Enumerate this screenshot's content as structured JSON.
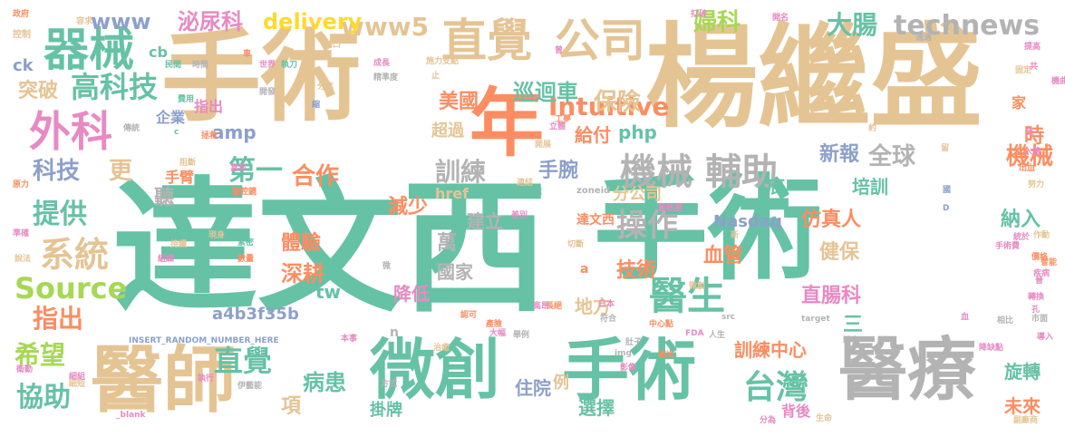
{
  "colors": {
    "green": "#66c2a5",
    "tan": "#e5c494",
    "orange": "#fc8d62",
    "blue": "#8da0cb",
    "pink": "#e78ac3",
    "lime": "#a6d854",
    "yellow": "#ffd92f",
    "gray": "#b3b3b3"
  },
  "words": [
    {
      "text": "達文西"
    },
    {
      "text": "手術"
    },
    {
      "text": "楊繼盛"
    },
    {
      "text": "手術"
    },
    {
      "text": "醫師"
    },
    {
      "text": "微創"
    },
    {
      "text": "手術"
    },
    {
      "text": "醫療"
    },
    {
      "text": "年"
    },
    {
      "text": "直覺"
    },
    {
      "text": "公司"
    },
    {
      "text": "器械"
    },
    {
      "text": "外科"
    },
    {
      "text": "高科技"
    },
    {
      "text": "機械"
    },
    {
      "text": "輔助"
    },
    {
      "text": "醫生"
    },
    {
      "text": "台灣"
    },
    {
      "text": "系統"
    },
    {
      "text": "Source"
    },
    {
      "text": "Intuitive"
    },
    {
      "text": "technews"
    },
    {
      "text": "www5"
    },
    {
      "text": "泌尿科"
    },
    {
      "text": "delivery"
    },
    {
      "text": "www"
    },
    {
      "text": "大腸"
    },
    {
      "text": "婦科"
    },
    {
      "text": "突破"
    },
    {
      "text": "保險"
    },
    {
      "text": "美國"
    },
    {
      "text": "巡迴車"
    },
    {
      "text": "訓練"
    },
    {
      "text": "手腕"
    },
    {
      "text": "科技"
    },
    {
      "text": "更"
    },
    {
      "text": "第一"
    },
    {
      "text": "合作"
    },
    {
      "text": "提供"
    },
    {
      "text": "操作"
    },
    {
      "text": "技術"
    },
    {
      "text": "直覺"
    },
    {
      "text": "希望"
    },
    {
      "text": "協助"
    },
    {
      "text": "指出"
    },
    {
      "text": "體驗"
    },
    {
      "text": "深耕"
    },
    {
      "text": "仿真人"
    },
    {
      "text": "血管"
    },
    {
      "text": "直腸科"
    },
    {
      "text": "訓練中心"
    },
    {
      "text": "病患"
    },
    {
      "text": "住院"
    },
    {
      "text": "選擇"
    },
    {
      "text": "未來"
    },
    {
      "text": "旋轉"
    },
    {
      "text": "全球"
    },
    {
      "text": "新報"
    },
    {
      "text": "機械"
    },
    {
      "text": "時"
    },
    {
      "text": "培訓"
    },
    {
      "text": "納入"
    },
    {
      "text": "健保"
    },
    {
      "text": "給付"
    },
    {
      "text": "超過"
    },
    {
      "text": "減少"
    },
    {
      "text": "分公司"
    },
    {
      "text": "建立"
    },
    {
      "text": "國家"
    },
    {
      "text": "降低"
    },
    {
      "text": "地方"
    },
    {
      "text": "Nasdaq"
    },
    {
      "text": "a4b3f35b"
    },
    {
      "text": "amp"
    },
    {
      "text": "php"
    },
    {
      "text": "tw"
    },
    {
      "text": "企業"
    },
    {
      "text": "聽"
    },
    {
      "text": "手臂"
    },
    {
      "text": "萬"
    },
    {
      "text": "三"
    },
    {
      "text": "項"
    },
    {
      "text": "掛牌"
    },
    {
      "text": "達文西"
    },
    {
      "text": "ck"
    },
    {
      "text": "cb"
    },
    {
      "text": "底"
    },
    {
      "text": "家"
    },
    {
      "text": "INSERT_RANDOM_NUMBER_HERE"
    },
    {
      "text": "href"
    },
    {
      "text": "zoneid"
    },
    {
      "text": "例"
    },
    {
      "text": "背後"
    },
    {
      "text": "a"
    },
    {
      "text": "n"
    },
    {
      "text": "政府"
    },
    {
      "text": "控制"
    },
    {
      "text": "精準度"
    },
    {
      "text": "施力支點"
    },
    {
      "text": "成長"
    },
    {
      "text": "民間"
    },
    {
      "text": "時間"
    },
    {
      "text": "世界"
    },
    {
      "text": "執刀"
    },
    {
      "text": "分享"
    },
    {
      "text": "開發"
    },
    {
      "text": "費用"
    },
    {
      "text": "研究"
    },
    {
      "text": "傳統"
    },
    {
      "text": "拯救"
    },
    {
      "text": "工夢"
    },
    {
      "text": "立體"
    },
    {
      "text": "開展"
    },
    {
      "text": "阻斷"
    },
    {
      "text": "富邦"
    },
    {
      "text": "連結"
    },
    {
      "text": "困境"
    },
    {
      "text": "差別"
    },
    {
      "text": "現身"
    },
    {
      "text": "持續"
    },
    {
      "text": "組織"
    },
    {
      "text": "數量"
    },
    {
      "text": "緊密"
    },
    {
      "text": "最敏度"
    },
    {
      "text": "切斷"
    },
    {
      "text": "中心點"
    },
    {
      "text": "手術費"
    },
    {
      "text": "智能"
    },
    {
      "text": "疾病"
    },
    {
      "text": "轉換"
    },
    {
      "text": "導入"
    },
    {
      "text": "市面"
    },
    {
      "text": "降缺點"
    },
    {
      "text": "精密"
    },
    {
      "text": "FDA"
    },
    {
      "text": "人生"
    },
    {
      "text": "肚子"
    },
    {
      "text": "毫米"
    },
    {
      "text": "影像"
    },
    {
      "text": "方式"
    },
    {
      "text": "執行"
    },
    {
      "text": "伊藝能"
    },
    {
      "text": "治癒"
    },
    {
      "text": "本事"
    },
    {
      "text": "認可"
    },
    {
      "text": "舉例"
    },
    {
      "text": "日本"
    },
    {
      "text": "符合"
    },
    {
      "text": "長絕"
    },
    {
      "text": "高昂"
    },
    {
      "text": "target"
    },
    {
      "text": "img"
    },
    {
      "text": "src"
    },
    {
      "text": "_blank"
    },
    {
      "text": "生命"
    },
    {
      "text": "分為"
    },
    {
      "text": "副廠商"
    },
    {
      "text": "努力"
    },
    {
      "text": "出血"
    },
    {
      "text": "入體"
    },
    {
      "text": "提高"
    },
    {
      "text": "固定"
    },
    {
      "text": "通過"
    },
    {
      "text": "切口"
    },
    {
      "text": "打破"
    },
    {
      "text": "開名"
    },
    {
      "text": "車"
    },
    {
      "text": "止"
    },
    {
      "text": "約"
    },
    {
      "text": "指出"
    },
    {
      "text": "共"
    },
    {
      "text": "留"
    },
    {
      "text": "國"
    },
    {
      "text": "說法"
    },
    {
      "text": "準確"
    },
    {
      "text": "原力"
    },
    {
      "text": "腹腔鏡"
    },
    {
      "text": "D"
    },
    {
      "text": "微"
    },
    {
      "text": "血"
    },
    {
      "text": "孔"
    },
    {
      "text": "相比"
    },
    {
      "text": "大幅"
    },
    {
      "text": "微創"
    },
    {
      "text": "產險"
    },
    {
      "text": "細短"
    },
    {
      "text": "細組"
    },
    {
      "text": "衛勤"
    },
    {
      "text": "新"
    },
    {
      "text": "曾"
    },
    {
      "text": "縮"
    },
    {
      "text": "c"
    },
    {
      "text": "支"
    },
    {
      "text": "作動"
    },
    {
      "text": "機曲"
    },
    {
      "text": "晉"
    },
    {
      "text": "容求"
    },
    {
      "text": "統於"
    },
    {
      "text": "價格"
    },
    {
      "text": "幾"
    }
  ]
}
